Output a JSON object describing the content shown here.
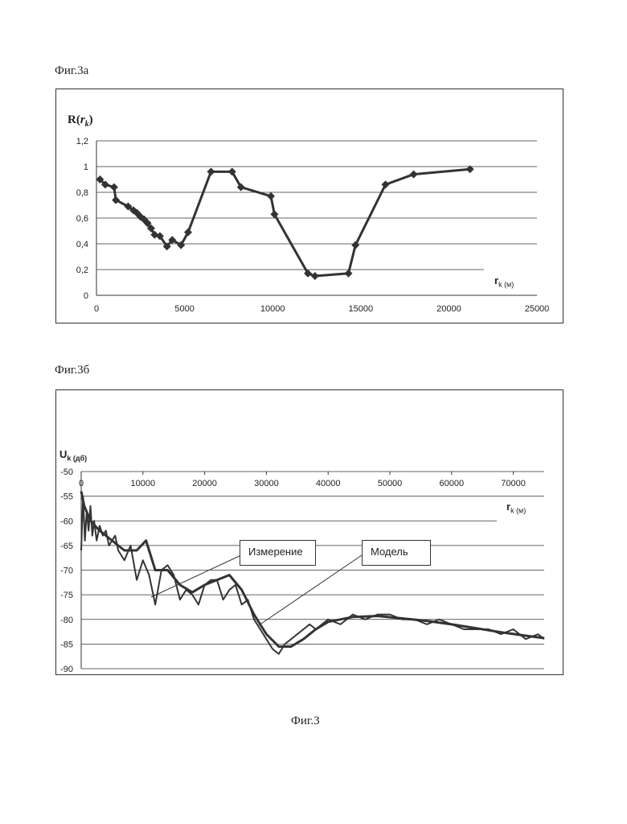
{
  "captions": {
    "fig3a": "Фиг.3а",
    "fig3b": "Фиг.3б",
    "fig3": "Фиг.3"
  },
  "chart_data": [
    {
      "type": "line",
      "ylabel": "R(r_k)",
      "xlabel": "r_k (м)",
      "xlim": [
        0,
        25000
      ],
      "ylim": [
        0,
        1.2
      ],
      "xticks": [
        0,
        5000,
        10000,
        15000,
        20000,
        25000
      ],
      "yticks": [
        "0",
        "0,2",
        "0,4",
        "0,6",
        "0,8",
        "1",
        "1,2"
      ],
      "grid": true,
      "markers": "diamond",
      "series": [
        {
          "x": [
            200,
            500,
            1000,
            1100,
            1800,
            2100,
            2300,
            2500,
            2700,
            2900,
            3100,
            3300,
            3600,
            4000,
            4300,
            4800,
            5200,
            6500,
            7700,
            8200,
            9900,
            10100,
            12000,
            12400,
            14300,
            14700,
            16400,
            18000,
            21200
          ],
          "values": [
            0.9,
            0.86,
            0.84,
            0.74,
            0.69,
            0.66,
            0.64,
            0.61,
            0.59,
            0.56,
            0.52,
            0.47,
            0.46,
            0.38,
            0.43,
            0.39,
            0.49,
            0.96,
            0.96,
            0.84,
            0.77,
            0.63,
            0.17,
            0.15,
            0.17,
            0.39,
            0.86,
            0.94,
            0.98
          ]
        }
      ]
    },
    {
      "type": "line",
      "ylabel": "U_k (дб)",
      "xlabel": "r_k (м)",
      "xlim": [
        0,
        75000
      ],
      "ylim": [
        -90,
        -50
      ],
      "xticks": [
        "0",
        "10000",
        "20000",
        "30000",
        "40000",
        "50000",
        "60000",
        "70000"
      ],
      "yticks": [
        "-50",
        "-55",
        "-60",
        "-65",
        "-70",
        "-75",
        "-80",
        "-85",
        "-90"
      ],
      "grid": true,
      "annotations": [
        "Измерение",
        "Модель"
      ],
      "series": [
        {
          "name": "Измерение",
          "x": [
            0,
            300,
            600,
            900,
            1200,
            1500,
            1800,
            2100,
            2500,
            3000,
            3500,
            4000,
            4500,
            5000,
            5500,
            6000,
            7000,
            8000,
            9000,
            10000,
            11000,
            12000,
            13000,
            14000,
            15000,
            16000,
            17000,
            18000,
            19000,
            20000,
            21000,
            22000,
            23000,
            24000,
            25000,
            26000,
            27000,
            28000,
            29000,
            30000,
            31000,
            32000,
            33000,
            34000,
            35000,
            36000,
            37000,
            38000,
            40000,
            42000,
            44000,
            46000,
            48000,
            50000,
            52000,
            54000,
            56000,
            58000,
            60000,
            62000,
            64000,
            66000,
            68000,
            70000,
            72000,
            74000,
            75000
          ],
          "values": [
            -66,
            -55,
            -64,
            -58,
            -62,
            -57,
            -63,
            -60,
            -64,
            -61,
            -63,
            -62,
            -65,
            -64,
            -63,
            -66,
            -68,
            -65,
            -72,
            -68,
            -71,
            -77,
            -70,
            -69,
            -71,
            -76,
            -74,
            -75,
            -77,
            -73,
            -72,
            -72,
            -76,
            -74,
            -73,
            -77,
            -76,
            -80,
            -82,
            -84,
            -86,
            -87,
            -85,
            -84,
            -83,
            -82,
            -81,
            -82,
            -80,
            -81,
            -79,
            -80,
            -79,
            -79,
            -80,
            -80,
            -81,
            -80,
            -81,
            -82,
            -82,
            -82,
            -83,
            -82,
            -84,
            -83,
            -84
          ]
        },
        {
          "name": "Модель",
          "x": [
            0,
            500,
            1500,
            3000,
            5000,
            7000,
            9000,
            10500,
            12000,
            14000,
            16000,
            18000,
            20000,
            22000,
            24000,
            26000,
            28000,
            30000,
            32000,
            34000,
            36000,
            38000,
            40000,
            44000,
            48000,
            52000,
            56000,
            60000,
            64000,
            68000,
            72000,
            75000
          ],
          "values": [
            -54,
            -57,
            -60,
            -62,
            -64,
            -66,
            -66,
            -64,
            -70,
            -70,
            -73,
            -74.5,
            -73,
            -72,
            -71,
            -74,
            -79,
            -83,
            -85.5,
            -85.5,
            -84,
            -82,
            -80.5,
            -79.5,
            -79.3,
            -79.8,
            -80.3,
            -81,
            -81.8,
            -82.6,
            -83.3,
            -83.8
          ]
        }
      ]
    }
  ]
}
